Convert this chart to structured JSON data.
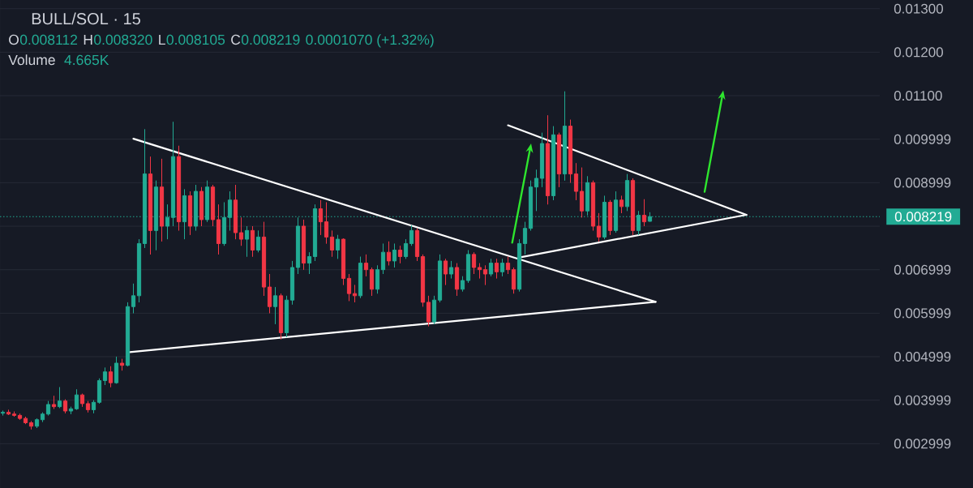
{
  "chart_data": {
    "type": "candlestick",
    "title": "BULL/SOL · 15",
    "annotations": [
      "O",
      "0.008112",
      "H",
      "0.008320",
      "L",
      "0.008105",
      "C",
      "0.008219",
      "0.0001070 (+1.32%)",
      "Volume",
      "4.665K"
    ],
    "categories": [
      null,
      null,
      null,
      null,
      null,
      null,
      null,
      null,
      null,
      null,
      null,
      null,
      null,
      null,
      null,
      null,
      null,
      null,
      null,
      null,
      null,
      null,
      null,
      null,
      null,
      null,
      null,
      null,
      null,
      null,
      null,
      null,
      null,
      null,
      null,
      null,
      null,
      null,
      null,
      null,
      null,
      null,
      null,
      null,
      null,
      null,
      null,
      null,
      null,
      null,
      null,
      null,
      null,
      null,
      null,
      null,
      null,
      null,
      null,
      null,
      null,
      null,
      null,
      null,
      null,
      null,
      null,
      null,
      null,
      null,
      null,
      null,
      null,
      null,
      null,
      null,
      null,
      null,
      null,
      null,
      null,
      null,
      null,
      null,
      null,
      null,
      null,
      null,
      null,
      null,
      null,
      null,
      null,
      null,
      null,
      null,
      null,
      null,
      null,
      null,
      null,
      null,
      null,
      null,
      null,
      null,
      null,
      null,
      null,
      null,
      null,
      null,
      null,
      null,
      null,
      null,
      null,
      null,
      null,
      null,
      null,
      null,
      null,
      null,
      null,
      null,
      null,
      null,
      null,
      null,
      null,
      null,
      null,
      null,
      null,
      null,
      null,
      null,
      null,
      null,
      null,
      null,
      null,
      null,
      null,
      null,
      null,
      null,
      null,
      null,
      null,
      null,
      null,
      null,
      null
    ],
    "ohlc": [
      [
        0.0037,
        0.00376,
        0.00365,
        0.00372
      ],
      [
        0.00372,
        0.00378,
        0.00366,
        0.00368
      ],
      [
        0.00368,
        0.00374,
        0.00362,
        0.00365
      ],
      [
        0.00365,
        0.00369,
        0.00355,
        0.00358
      ],
      [
        0.00358,
        0.00362,
        0.00345,
        0.00348
      ],
      [
        0.00348,
        0.00352,
        0.00333,
        0.0034
      ],
      [
        0.0034,
        0.00358,
        0.00336,
        0.00355
      ],
      [
        0.00355,
        0.00372,
        0.0035,
        0.00368
      ],
      [
        0.00368,
        0.00398,
        0.00365,
        0.0039
      ],
      [
        0.0039,
        0.0041,
        0.0038,
        0.00385
      ],
      [
        0.00385,
        0.0043,
        0.00382,
        0.00398
      ],
      [
        0.00398,
        0.00402,
        0.0037,
        0.00375
      ],
      [
        0.00375,
        0.00385,
        0.00368,
        0.0038
      ],
      [
        0.0038,
        0.00425,
        0.00378,
        0.00412
      ],
      [
        0.00412,
        0.00415,
        0.00385,
        0.00392
      ],
      [
        0.00392,
        0.00398,
        0.00372,
        0.00378
      ],
      [
        0.00378,
        0.004,
        0.0037,
        0.00395
      ],
      [
        0.00395,
        0.0045,
        0.00392,
        0.00445
      ],
      [
        0.00445,
        0.00475,
        0.00435,
        0.00465
      ],
      [
        0.00465,
        0.00478,
        0.0043,
        0.0044
      ],
      [
        0.0044,
        0.005,
        0.00438,
        0.00485
      ],
      [
        0.00485,
        0.00495,
        0.00468,
        0.0048
      ],
      [
        0.0048,
        0.00625,
        0.00478,
        0.00615
      ],
      [
        0.00615,
        0.00668,
        0.006,
        0.0064
      ],
      [
        0.0064,
        0.0077,
        0.00625,
        0.0076
      ],
      [
        0.0076,
        0.01023,
        0.0075,
        0.0092
      ],
      [
        0.0092,
        0.0096,
        0.00735,
        0.0079
      ],
      [
        0.0079,
        0.00905,
        0.00745,
        0.0089
      ],
      [
        0.0089,
        0.00955,
        0.00765,
        0.008
      ],
      [
        0.008,
        0.0085,
        0.0077,
        0.0082
      ],
      [
        0.0082,
        0.0104,
        0.008,
        0.0096
      ],
      [
        0.0096,
        0.00985,
        0.0079,
        0.0081
      ],
      [
        0.0081,
        0.00885,
        0.0077,
        0.0087
      ],
      [
        0.0087,
        0.0088,
        0.0078,
        0.008
      ],
      [
        0.008,
        0.00895,
        0.0079,
        0.0088
      ],
      [
        0.0088,
        0.0089,
        0.008,
        0.00815
      ],
      [
        0.00815,
        0.00905,
        0.0081,
        0.0089
      ],
      [
        0.0089,
        0.00895,
        0.008,
        0.00815
      ],
      [
        0.00815,
        0.0085,
        0.00735,
        0.0076
      ],
      [
        0.0076,
        0.00855,
        0.00755,
        0.0082
      ],
      [
        0.0082,
        0.0088,
        0.0079,
        0.0086
      ],
      [
        0.0086,
        0.00895,
        0.0077,
        0.00785
      ],
      [
        0.00785,
        0.0082,
        0.00755,
        0.0077
      ],
      [
        0.0077,
        0.008,
        0.0073,
        0.0079
      ],
      [
        0.0079,
        0.008,
        0.0073,
        0.00745
      ],
      [
        0.00745,
        0.0079,
        0.0074,
        0.00775
      ],
      [
        0.00775,
        0.0081,
        0.0064,
        0.0066
      ],
      [
        0.0066,
        0.0069,
        0.006,
        0.00615
      ],
      [
        0.00615,
        0.0066,
        0.00575,
        0.0064
      ],
      [
        0.0064,
        0.00645,
        0.0054,
        0.00555
      ],
      [
        0.00555,
        0.0064,
        0.00545,
        0.0063
      ],
      [
        0.0063,
        0.0072,
        0.0062,
        0.00705
      ],
      [
        0.00705,
        0.0082,
        0.0069,
        0.008
      ],
      [
        0.008,
        0.00815,
        0.007,
        0.00715
      ],
      [
        0.00715,
        0.0074,
        0.0069,
        0.0073
      ],
      [
        0.0073,
        0.0085,
        0.0072,
        0.0084
      ],
      [
        0.0084,
        0.0086,
        0.0078,
        0.0081
      ],
      [
        0.0081,
        0.00855,
        0.0076,
        0.00775
      ],
      [
        0.00775,
        0.0079,
        0.0073,
        0.00745
      ],
      [
        0.00745,
        0.0078,
        0.00725,
        0.0077
      ],
      [
        0.0077,
        0.00772,
        0.00665,
        0.0068
      ],
      [
        0.0068,
        0.0069,
        0.00628,
        0.00645
      ],
      [
        0.00645,
        0.00665,
        0.00625,
        0.0064
      ],
      [
        0.0064,
        0.0073,
        0.00635,
        0.00715
      ],
      [
        0.00715,
        0.00735,
        0.00685,
        0.007
      ],
      [
        0.007,
        0.00705,
        0.0064,
        0.00655
      ],
      [
        0.00655,
        0.0071,
        0.00645,
        0.007
      ],
      [
        0.007,
        0.0076,
        0.0069,
        0.0074
      ],
      [
        0.0074,
        0.00765,
        0.0071,
        0.0072
      ],
      [
        0.0072,
        0.0076,
        0.00705,
        0.00745
      ],
      [
        0.00745,
        0.00755,
        0.00715,
        0.0073
      ],
      [
        0.0073,
        0.0077,
        0.00725,
        0.0076
      ],
      [
        0.0076,
        0.00802,
        0.00755,
        0.0079
      ],
      [
        0.0079,
        0.00795,
        0.0072,
        0.0073
      ],
      [
        0.0073,
        0.00735,
        0.00615,
        0.00625
      ],
      [
        0.00625,
        0.0064,
        0.0057,
        0.0058
      ],
      [
        0.0058,
        0.0064,
        0.00575,
        0.0063
      ],
      [
        0.0063,
        0.00735,
        0.00625,
        0.0072
      ],
      [
        0.0072,
        0.00725,
        0.00665,
        0.0069
      ],
      [
        0.0069,
        0.0072,
        0.0068,
        0.00705
      ],
      [
        0.00705,
        0.00715,
        0.0064,
        0.00655
      ],
      [
        0.00655,
        0.00685,
        0.0065,
        0.00675
      ],
      [
        0.00675,
        0.00745,
        0.0067,
        0.00735
      ],
      [
        0.00735,
        0.0074,
        0.0069,
        0.00705
      ],
      [
        0.00705,
        0.00715,
        0.0068,
        0.007
      ],
      [
        0.007,
        0.0071,
        0.00665,
        0.0069
      ],
      [
        0.0069,
        0.00725,
        0.00685,
        0.00715
      ],
      [
        0.00715,
        0.00725,
        0.0068,
        0.00695
      ],
      [
        0.00695,
        0.00725,
        0.00685,
        0.00715
      ],
      [
        0.00715,
        0.0073,
        0.0069,
        0.007
      ],
      [
        0.007,
        0.00705,
        0.00645,
        0.00655
      ],
      [
        0.00655,
        0.0077,
        0.0065,
        0.0076
      ],
      [
        0.0076,
        0.0081,
        0.00735,
        0.00795
      ],
      [
        0.00795,
        0.00905,
        0.0079,
        0.0089
      ],
      [
        0.0089,
        0.0093,
        0.00835,
        0.0091
      ],
      [
        0.0091,
        0.01015,
        0.0089,
        0.0099
      ],
      [
        0.0099,
        0.01055,
        0.0085,
        0.0087
      ],
      [
        0.0087,
        0.0103,
        0.0086,
        0.0101
      ],
      [
        0.0101,
        0.01015,
        0.0089,
        0.0092
      ],
      [
        0.0092,
        0.0111,
        0.00905,
        0.0103
      ],
      [
        0.0103,
        0.01045,
        0.009,
        0.0092
      ],
      [
        0.0092,
        0.00945,
        0.0086,
        0.0088
      ],
      [
        0.0088,
        0.00935,
        0.0082,
        0.00835
      ],
      [
        0.00835,
        0.00915,
        0.00825,
        0.009
      ],
      [
        0.009,
        0.00905,
        0.0079,
        0.008
      ],
      [
        0.008,
        0.0083,
        0.00765,
        0.00775
      ],
      [
        0.00775,
        0.0087,
        0.0077,
        0.00855
      ],
      [
        0.00855,
        0.0086,
        0.0078,
        0.0079
      ],
      [
        0.0079,
        0.0088,
        0.00785,
        0.0086
      ],
      [
        0.0086,
        0.0087,
        0.0083,
        0.00845
      ],
      [
        0.00845,
        0.0092,
        0.00835,
        0.00905
      ],
      [
        0.00905,
        0.0091,
        0.0078,
        0.0079
      ],
      [
        0.0079,
        0.00835,
        0.0078,
        0.00825
      ],
      [
        0.00825,
        0.00862,
        0.008,
        0.0081
      ],
      [
        0.008112,
        0.00832,
        0.008105,
        0.008219
      ],
      null,
      null,
      null,
      null,
      null,
      null,
      null,
      null,
      null,
      null,
      null,
      null,
      null,
      null,
      null,
      null,
      null,
      null,
      null,
      null,
      null,
      null,
      null,
      null,
      null,
      null,
      null,
      null,
      null,
      null,
      null,
      null,
      null,
      null,
      null,
      null,
      null,
      null,
      null,
      null
    ],
    "colors": [
      "#22ab94",
      "#f23645",
      "#f23645",
      "#f23645",
      "#f23645",
      "#f23645",
      "#22ab94",
      "#22ab94",
      "#22ab94",
      "#f23645",
      "#22ab94",
      "#f23645",
      "#22ab94",
      "#22ab94",
      "#f23645",
      "#f23645",
      "#22ab94",
      "#22ab94",
      "#22ab94",
      "#f23645",
      "#22ab94",
      "#f23645",
      "#22ab94",
      "#22ab94",
      "#22ab94",
      "#22ab94",
      "#f23645",
      "#22ab94",
      "#f23645",
      "#22ab94",
      "#22ab94",
      "#f23645",
      "#22ab94",
      "#f23645",
      "#22ab94",
      "#f23645",
      "#22ab94",
      "#f23645",
      "#f23645",
      "#22ab94",
      "#22ab94",
      "#f23645",
      "#f23645",
      "#22ab94",
      "#f23645",
      "#22ab94",
      "#f23645",
      "#f23645",
      "#22ab94",
      "#f23645",
      "#22ab94",
      "#22ab94",
      "#22ab94",
      "#f23645",
      "#22ab94",
      "#22ab94",
      "#f23645",
      "#f23645",
      "#f23645",
      "#22ab94",
      "#f23645",
      "#f23645",
      "#f23645",
      "#22ab94",
      "#f23645",
      "#f23645",
      "#22ab94",
      "#22ab94",
      "#f23645",
      "#22ab94",
      "#f23645",
      "#22ab94",
      "#22ab94",
      "#f23645",
      "#f23645",
      "#f23645",
      "#22ab94",
      "#22ab94",
      "#f23645",
      "#22ab94",
      "#f23645",
      "#22ab94",
      "#22ab94",
      "#f23645",
      "#f23645",
      "#f23645",
      "#22ab94",
      "#f23645",
      "#22ab94",
      "#f23645",
      "#f23645",
      "#22ab94",
      "#22ab94",
      "#22ab94",
      "#22ab94",
      "#22ab94",
      "#f23645",
      "#22ab94",
      "#f23645",
      "#22ab94",
      "#f23645",
      "#f23645",
      "#f23645",
      "#22ab94",
      "#f23645",
      "#f23645",
      "#22ab94",
      "#f23645",
      "#22ab94",
      "#f23645",
      "#22ab94",
      "#f23645",
      "#22ab94",
      "#f23645",
      "#22ab94",
      null,
      null,
      null,
      null,
      null,
      null,
      null,
      null,
      null,
      null,
      null,
      null,
      null,
      null,
      null,
      null,
      null,
      null,
      null,
      null,
      null,
      null,
      null,
      null,
      null,
      null,
      null,
      null,
      null,
      null,
      null,
      null,
      null,
      null,
      null,
      null,
      null,
      null,
      null,
      null
    ],
    "series": [
      {
        "type": "line",
        "color": "#ffffff",
        "values": [
          null,
          null,
          null,
          null,
          null,
          null,
          null,
          null,
          null,
          null,
          null,
          null,
          null,
          null,
          null,
          null,
          null,
          null,
          null,
          null,
          null,
          null,
          null,
          0.01001,
          null,
          null,
          null,
          null,
          null,
          null,
          null,
          null,
          null,
          null,
          null,
          null,
          null,
          null,
          null,
          null,
          null,
          null,
          null,
          null,
          null,
          null,
          null,
          null,
          null,
          null,
          null,
          null,
          null,
          null,
          null,
          null,
          null,
          null,
          null,
          null,
          null,
          null,
          null,
          null,
          null,
          null,
          null,
          null,
          null,
          null,
          null,
          null,
          null,
          null,
          null,
          null,
          null,
          null,
          null,
          null,
          null,
          null,
          null,
          null,
          null,
          null,
          null,
          null,
          null,
          null,
          null,
          null,
          null,
          null,
          null,
          null,
          null,
          null,
          null,
          null,
          null,
          null,
          null,
          null,
          null,
          null,
          null,
          null,
          null,
          null,
          null,
          null,
          null,
          null,
          null,
          0.00626,
          null,
          null,
          null,
          null,
          null,
          null,
          null,
          null,
          null,
          null,
          null,
          null,
          null,
          null,
          null,
          null,
          null,
          null,
          null,
          null,
          null,
          null,
          null,
          null,
          null,
          null,
          null,
          null,
          null,
          null,
          null,
          null,
          null,
          null,
          null,
          null,
          null,
          null,
          null
        ]
      },
      {
        "type": "line",
        "color": "#ffffff",
        "values": [
          null,
          null,
          null,
          null,
          null,
          null,
          null,
          null,
          null,
          null,
          null,
          null,
          null,
          null,
          null,
          null,
          null,
          null,
          null,
          null,
          null,
          null,
          0.0051,
          null,
          null,
          null,
          null,
          null,
          null,
          null,
          null,
          null,
          null,
          null,
          null,
          null,
          null,
          null,
          null,
          null,
          null,
          null,
          null,
          null,
          null,
          null,
          null,
          null,
          null,
          null,
          null,
          null,
          null,
          null,
          null,
          null,
          null,
          null,
          null,
          null,
          null,
          null,
          null,
          null,
          null,
          null,
          null,
          null,
          null,
          null,
          null,
          null,
          null,
          null,
          null,
          null,
          null,
          null,
          null,
          null,
          null,
          null,
          null,
          null,
          null,
          null,
          null,
          null,
          null,
          null,
          null,
          null,
          null,
          null,
          null,
          null,
          null,
          null,
          null,
          null,
          null,
          null,
          null,
          null,
          null,
          null,
          null,
          null,
          null,
          null,
          null,
          null,
          null,
          null,
          null,
          0.00626,
          null,
          null,
          null,
          null,
          null,
          null,
          null,
          null,
          null,
          null,
          null,
          null,
          null,
          null,
          null,
          null,
          null,
          null,
          null,
          null,
          null,
          null,
          null,
          null,
          null,
          null,
          null,
          null,
          null,
          null,
          null,
          null,
          null,
          null,
          null,
          null,
          null,
          null,
          null
        ]
      },
      {
        "type": "line",
        "color": "#ffffff",
        "values": [
          null,
          null,
          null,
          null,
          null,
          null,
          null,
          null,
          null,
          null,
          null,
          null,
          null,
          null,
          null,
          null,
          null,
          null,
          null,
          null,
          null,
          null,
          null,
          null,
          null,
          null,
          null,
          null,
          null,
          null,
          null,
          null,
          null,
          null,
          null,
          null,
          null,
          null,
          null,
          null,
          null,
          null,
          null,
          null,
          null,
          null,
          null,
          null,
          null,
          null,
          null,
          null,
          null,
          null,
          null,
          null,
          null,
          null,
          null,
          null,
          null,
          null,
          null,
          null,
          null,
          null,
          null,
          null,
          null,
          null,
          null,
          null,
          null,
          null,
          null,
          null,
          null,
          null,
          null,
          null,
          null,
          null,
          null,
          null,
          null,
          null,
          null,
          null,
          null,
          0.01032,
          null,
          null,
          null,
          null,
          null,
          null,
          null,
          null,
          null,
          null,
          null,
          null,
          null,
          null,
          null,
          null,
          null,
          null,
          null,
          null,
          null,
          null,
          null,
          null,
          null,
          null,
          null,
          null,
          null,
          null,
          null,
          null,
          null,
          null,
          null,
          null,
          null,
          null,
          null,
          null,
          null,
          0.00826,
          null,
          null,
          null,
          null,
          null,
          null,
          null,
          null,
          null,
          null,
          null,
          null,
          null,
          null,
          null,
          null,
          null,
          null,
          null,
          null,
          null,
          null,
          null
        ]
      },
      {
        "type": "line",
        "color": "#ffffff",
        "values": [
          null,
          null,
          null,
          null,
          null,
          null,
          null,
          null,
          null,
          null,
          null,
          null,
          null,
          null,
          null,
          null,
          null,
          null,
          null,
          null,
          null,
          null,
          null,
          null,
          null,
          null,
          null,
          null,
          null,
          null,
          null,
          null,
          null,
          null,
          null,
          null,
          null,
          null,
          null,
          null,
          null,
          null,
          null,
          null,
          null,
          null,
          null,
          null,
          null,
          null,
          null,
          null,
          null,
          null,
          null,
          null,
          null,
          null,
          null,
          null,
          null,
          null,
          null,
          null,
          null,
          null,
          null,
          null,
          null,
          null,
          null,
          null,
          null,
          null,
          null,
          null,
          null,
          null,
          null,
          null,
          null,
          null,
          null,
          null,
          null,
          null,
          null,
          null,
          null,
          null,
          null,
          0.00728,
          null,
          null,
          null,
          null,
          null,
          null,
          null,
          null,
          null,
          null,
          null,
          null,
          null,
          null,
          null,
          null,
          null,
          null,
          null,
          null,
          null,
          null,
          null,
          null,
          null,
          null,
          null,
          null,
          null,
          null,
          null,
          null,
          null,
          null,
          null,
          null,
          null,
          null,
          null,
          0.00826,
          null,
          null,
          null,
          null,
          null,
          null,
          null,
          null,
          null,
          null,
          null,
          null,
          null,
          null,
          null,
          null,
          null,
          null,
          null,
          null,
          null,
          null,
          null
        ]
      }
    ],
    "ylim": [
      0.00198,
      0.0132
    ],
    "yticks": [
      0.002999,
      0.003999,
      0.004999,
      0.005999,
      0.006999,
      {
        "value": 0.007999,
        "label": null
      },
      0.008999,
      0.009999,
      {
        "value": 0.011,
        "label": "0.01100"
      },
      {
        "value": 0.012,
        "label": "0.01200"
      },
      {
        "value": 0.013,
        "label": "0.01300"
      }
    ],
    "ref_lines": [
      {
        "axis": "y",
        "value": 0.008219,
        "label": "0.008219",
        "color": "#22ab94",
        "line_style": "dotted"
      }
    ],
    "grid": "y"
  }
}
